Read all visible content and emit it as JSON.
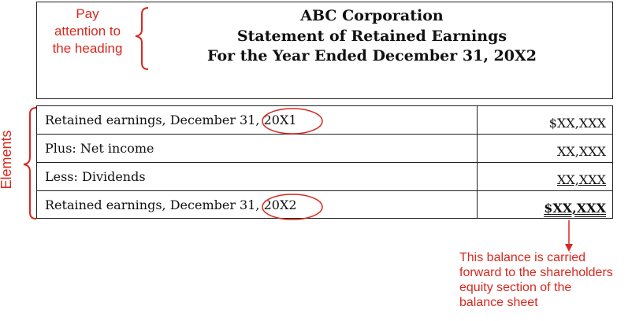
{
  "statement": {
    "heading": {
      "company": "ABC Corporation",
      "title": "Statement of Retained Earnings",
      "period": "For the Year Ended December 31, 20X2"
    },
    "rows": [
      {
        "label": "Retained earnings, December 31, ",
        "year": "20X1",
        "amount": "$XX,XXX",
        "style": "plain"
      },
      {
        "label": "Plus: Net income",
        "year": "",
        "amount": "XX,XXX",
        "style": "plain"
      },
      {
        "label": "Less: Dividends",
        "year": "",
        "amount": "XX,XXX",
        "style": "underline"
      },
      {
        "label": "Retained earnings, December 31, ",
        "year": "20X2",
        "amount": "$XX,XXX",
        "style": "bold-double-underline"
      }
    ]
  },
  "annotations": {
    "heading_note": [
      "Pay",
      "attention to",
      "the heading"
    ],
    "elements_note": "Elements",
    "balance_note": [
      "This balance is carried",
      "forward to the shareholders",
      "equity section of the",
      "balance sheet"
    ]
  },
  "colors": {
    "annotation": "#d6291f",
    "border": "#222222"
  }
}
